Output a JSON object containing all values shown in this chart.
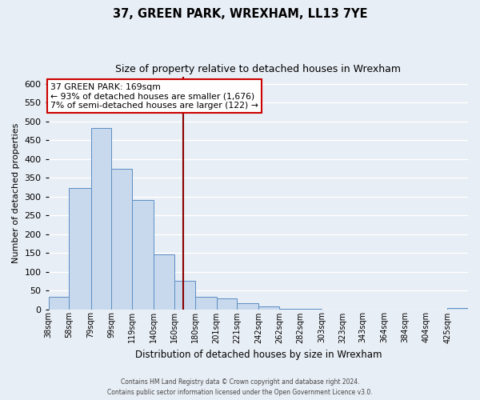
{
  "title": "37, GREEN PARK, WREXHAM, LL13 7YE",
  "subtitle": "Size of property relative to detached houses in Wrexham",
  "xlabel": "Distribution of detached houses by size in Wrexham",
  "ylabel": "Number of detached properties",
  "bin_edges": [
    38,
    58,
    79,
    99,
    119,
    140,
    160,
    180,
    201,
    221,
    242,
    262,
    282,
    303,
    323,
    343,
    364,
    384,
    404,
    425,
    445
  ],
  "bar_heights": [
    32,
    322,
    482,
    375,
    290,
    145,
    75,
    32,
    29,
    17,
    7,
    2,
    1,
    0,
    0,
    0,
    0,
    0,
    0,
    3
  ],
  "bar_face_color": "#c8d9ee",
  "bar_edge_color": "#5b8ec4",
  "property_size": 169,
  "vline_color": "#8b0000",
  "annotation_line1": "37 GREEN PARK: 169sqm",
  "annotation_line2": "← 93% of detached houses are smaller (1,676)",
  "annotation_line3": "7% of semi-detached houses are larger (122) →",
  "annotation_box_color": "#ffffff",
  "annotation_box_edge_color": "#cc0000",
  "ylim": [
    0,
    620
  ],
  "yticks": [
    0,
    50,
    100,
    150,
    200,
    250,
    300,
    350,
    400,
    450,
    500,
    550,
    600
  ],
  "bg_color": "#e8eef5",
  "grid_color": "#ffffff",
  "footer_line1": "Contains HM Land Registry data © Crown copyright and database right 2024.",
  "footer_line2": "Contains public sector information licensed under the Open Government Licence v3.0."
}
